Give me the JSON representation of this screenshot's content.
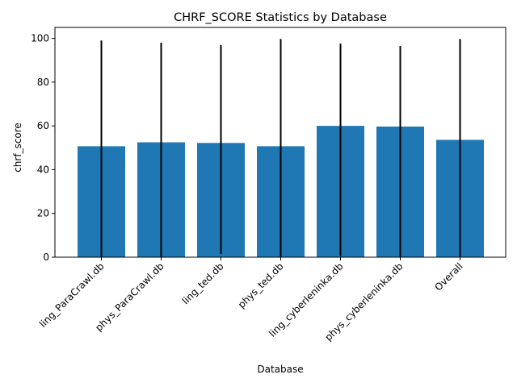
{
  "chart_data": {
    "type": "bar",
    "title": "CHRF_SCORE Statistics by Database",
    "xlabel": "Database",
    "ylabel": "chrf_score",
    "categories": [
      "ling_ParaCrawl.db",
      "phys_ParaCrawl.db",
      "ling_ted.db",
      "phys_ted.db",
      "ling_cyberleninka.db",
      "phys_cyberleninka.db",
      "Overall"
    ],
    "values": [
      50.7,
      52.5,
      52.2,
      50.7,
      60.0,
      59.7,
      53.6
    ],
    "error_bars": [
      {
        "low": 0.0,
        "high": 99.0
      },
      {
        "low": 0.0,
        "high": 98.0
      },
      {
        "low": 1.5,
        "high": 97.0
      },
      {
        "low": 0.0,
        "high": 99.7
      },
      {
        "low": 0.5,
        "high": 97.6
      },
      {
        "low": 0.0,
        "high": 96.5
      },
      {
        "low": 0.0,
        "high": 99.7
      }
    ],
    "ylim": [
      0,
      105
    ],
    "yticks": [
      0,
      20,
      40,
      60,
      80,
      100
    ],
    "bar_color": "#1f77b4",
    "error_color": "#000000",
    "grid": false,
    "legend": "none"
  }
}
